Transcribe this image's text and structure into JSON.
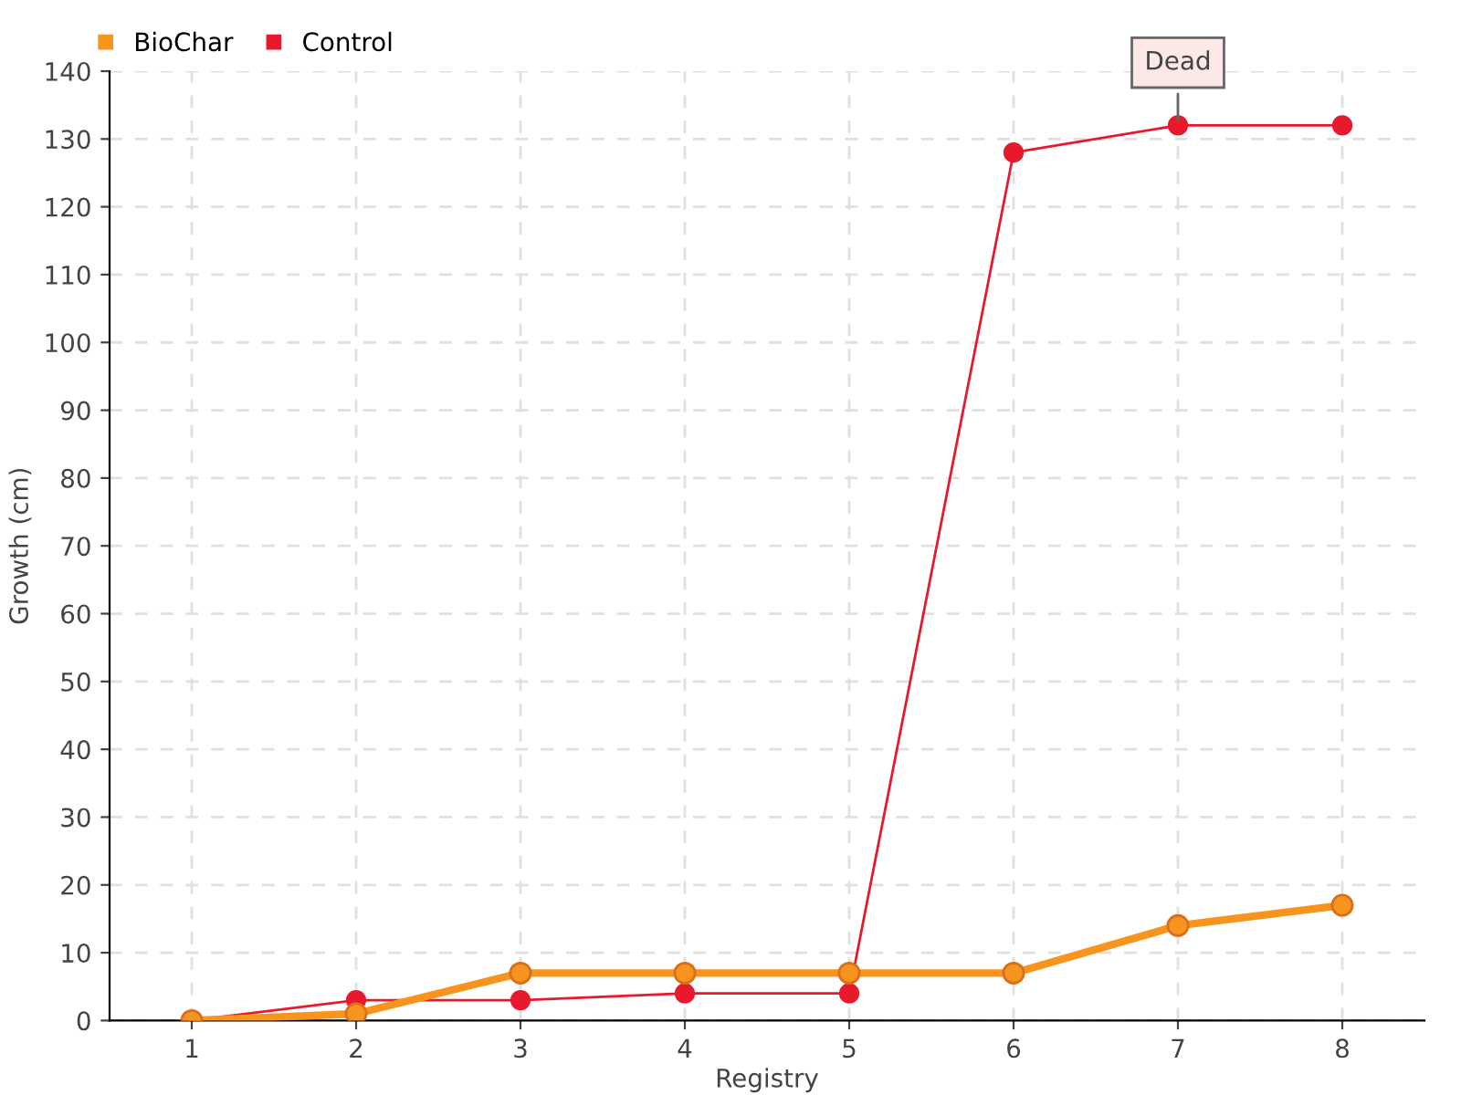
{
  "chart_data": {
    "type": "line",
    "xlabel": "Registry",
    "ylabel": "Growth (cm)",
    "x": [
      1,
      2,
      3,
      4,
      5,
      6,
      7,
      8
    ],
    "series": [
      {
        "name": "BioChar",
        "color": "#f7941d",
        "values": [
          0,
          1,
          7,
          7,
          7,
          7,
          14,
          17
        ]
      },
      {
        "name": "Control",
        "color": "#e8192c",
        "values": [
          0,
          3,
          3,
          4,
          4,
          128,
          132,
          132
        ]
      }
    ],
    "xlim": [
      0.5,
      8.5
    ],
    "xticks": [
      1,
      2,
      3,
      4,
      5,
      6,
      7,
      8
    ],
    "ylim": [
      0,
      140
    ],
    "yticks": [
      0,
      10,
      20,
      30,
      40,
      50,
      60,
      70,
      80,
      90,
      100,
      110,
      120,
      130,
      140
    ],
    "annotations": [
      {
        "text": "Dead",
        "x": 7,
        "y": 132
      }
    ],
    "grid": true,
    "legend": "top left",
    "marker": "circle",
    "line_style": "solid"
  }
}
